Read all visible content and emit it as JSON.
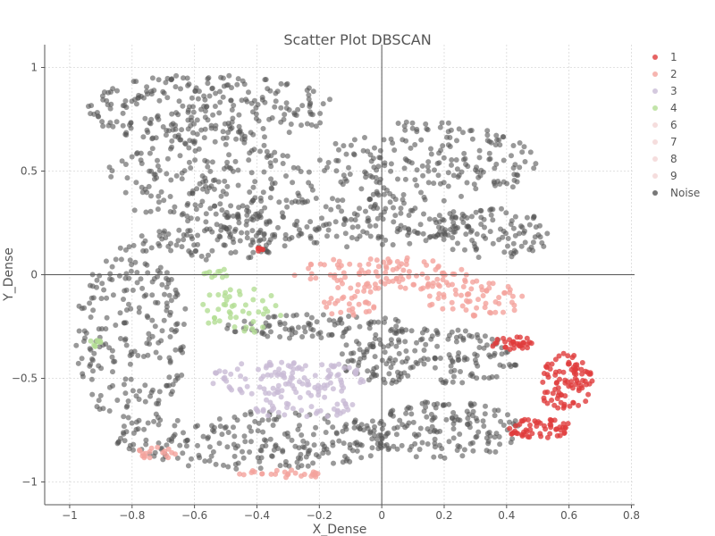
{
  "chart_data": {
    "type": "scatter",
    "title": "Scatter Plot DBSCAN",
    "xlabel": "X_Dense",
    "ylabel": "Y_Dense",
    "xlim": [
      -1.08,
      0.81
    ],
    "ylim": [
      -1.11,
      1.11
    ],
    "xticks": [
      -1,
      -0.8,
      -0.6,
      -0.4,
      -0.2,
      0,
      0.2,
      0.4,
      0.6,
      0.8
    ],
    "xtick_labels": [
      "−1",
      "−0.8",
      "−0.6",
      "−0.4",
      "−0.2",
      "0",
      "0.2",
      "0.4",
      "0.6",
      "0.8"
    ],
    "yticks": [
      -1,
      -0.5,
      0,
      0.5,
      1
    ],
    "ytick_labels": [
      "−1",
      "−0.5",
      "0",
      "0.5",
      "1"
    ],
    "grid": true,
    "zero_lines": true,
    "legend_position": "right-outside",
    "series": [
      {
        "name": "1",
        "color": "#e03c3c",
        "regions": [
          {
            "cx": 0.59,
            "cy": -0.52,
            "rx": 0.09,
            "ry": 0.14,
            "n": 90
          },
          {
            "cx": 0.5,
            "cy": -0.74,
            "rx": 0.11,
            "ry": 0.05,
            "n": 55
          },
          {
            "cx": 0.42,
            "cy": -0.33,
            "rx": 0.08,
            "ry": 0.03,
            "n": 30
          },
          {
            "cx": -0.39,
            "cy": 0.12,
            "rx": 0.02,
            "ry": 0.01,
            "n": 6
          }
        ]
      },
      {
        "name": "2",
        "color": "#f4a39c",
        "regions": [
          {
            "cx": 0.0,
            "cy": 0.0,
            "rx": 0.28,
            "ry": 0.09,
            "n": 110
          },
          {
            "cx": 0.3,
            "cy": -0.12,
            "rx": 0.16,
            "ry": 0.09,
            "n": 60
          },
          {
            "cx": -0.1,
            "cy": -0.15,
            "rx": 0.1,
            "ry": 0.05,
            "n": 25
          },
          {
            "cx": -0.72,
            "cy": -0.86,
            "rx": 0.07,
            "ry": 0.03,
            "n": 18
          },
          {
            "cx": -0.31,
            "cy": -0.96,
            "rx": 0.15,
            "ry": 0.02,
            "n": 25
          }
        ]
      },
      {
        "name": "3",
        "color": "#c9bcd6",
        "regions": [
          {
            "cx": -0.3,
            "cy": -0.5,
            "rx": 0.25,
            "ry": 0.09,
            "n": 120
          },
          {
            "cx": -0.25,
            "cy": -0.64,
            "rx": 0.16,
            "ry": 0.06,
            "n": 40
          }
        ]
      },
      {
        "name": "4",
        "color": "#b3dd94",
        "regions": [
          {
            "cx": -0.44,
            "cy": -0.17,
            "rx": 0.14,
            "ry": 0.12,
            "n": 45
          },
          {
            "cx": -0.52,
            "cy": 0.01,
            "rx": 0.05,
            "ry": 0.03,
            "n": 10
          },
          {
            "cx": -0.94,
            "cy": -0.33,
            "rx": 0.04,
            "ry": 0.03,
            "n": 8
          }
        ]
      },
      {
        "name": "6",
        "color": "#f2d4d4",
        "regions": []
      },
      {
        "name": "7",
        "color": "#f2d4d4",
        "regions": []
      },
      {
        "name": "8",
        "color": "#f2d4d4",
        "regions": []
      },
      {
        "name": "9",
        "color": "#f2d4d4",
        "regions": []
      },
      {
        "name": "Noise",
        "color": "#555555",
        "regions": [
          {
            "cx": -0.55,
            "cy": 0.8,
            "rx": 0.4,
            "ry": 0.17,
            "n": 260
          },
          {
            "cx": 0.15,
            "cy": 0.55,
            "rx": 0.35,
            "ry": 0.2,
            "n": 200
          },
          {
            "cx": -0.15,
            "cy": 0.25,
            "rx": 0.45,
            "ry": 0.12,
            "n": 200
          },
          {
            "cx": -0.55,
            "cy": 0.45,
            "rx": 0.35,
            "ry": 0.2,
            "n": 180
          },
          {
            "cx": -0.8,
            "cy": -0.3,
            "rx": 0.18,
            "ry": 0.45,
            "n": 220
          },
          {
            "cx": -0.4,
            "cy": -0.8,
            "rx": 0.45,
            "ry": 0.14,
            "n": 230
          },
          {
            "cx": 0.15,
            "cy": -0.4,
            "rx": 0.3,
            "ry": 0.14,
            "n": 180
          },
          {
            "cx": 0.2,
            "cy": -0.75,
            "rx": 0.25,
            "ry": 0.14,
            "n": 150
          },
          {
            "cx": -0.2,
            "cy": -0.25,
            "rx": 0.3,
            "ry": 0.06,
            "n": 90
          },
          {
            "cx": 0.35,
            "cy": 0.2,
            "rx": 0.2,
            "ry": 0.12,
            "n": 90
          },
          {
            "cx": -0.55,
            "cy": 0.15,
            "rx": 0.25,
            "ry": 0.08,
            "n": 80
          }
        ]
      }
    ]
  }
}
